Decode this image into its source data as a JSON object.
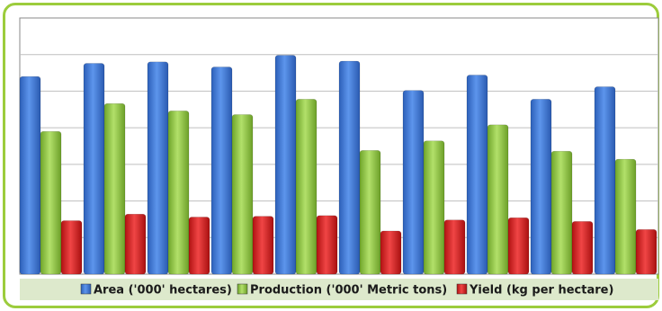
{
  "chart_data": {
    "type": "bar",
    "categories": [
      "",
      "",
      "",
      "",
      "",
      "",
      "",
      "",
      "",
      ""
    ],
    "series": [
      {
        "name": "Area ('000' hectares)",
        "color": "#3a74d6",
        "values": [
          2700,
          2880,
          2900,
          2830,
          2990,
          2910,
          2510,
          2720,
          2390,
          2560
        ]
      },
      {
        "name": "Production ('000' Metric tons)",
        "color": "#8cc63f",
        "values": [
          1950,
          2330,
          2230,
          2180,
          2390,
          1690,
          1820,
          2040,
          1680,
          1570
        ]
      },
      {
        "name": "Yield (kg per hectare)",
        "color": "#d91e1e",
        "values": [
          730,
          820,
          780,
          790,
          800,
          590,
          740,
          770,
          720,
          610
        ]
      }
    ],
    "ylim": [
      0,
      3500
    ],
    "grid": true,
    "legend_position": "bottom",
    "title": "",
    "xlabel": "",
    "ylabel": ""
  }
}
